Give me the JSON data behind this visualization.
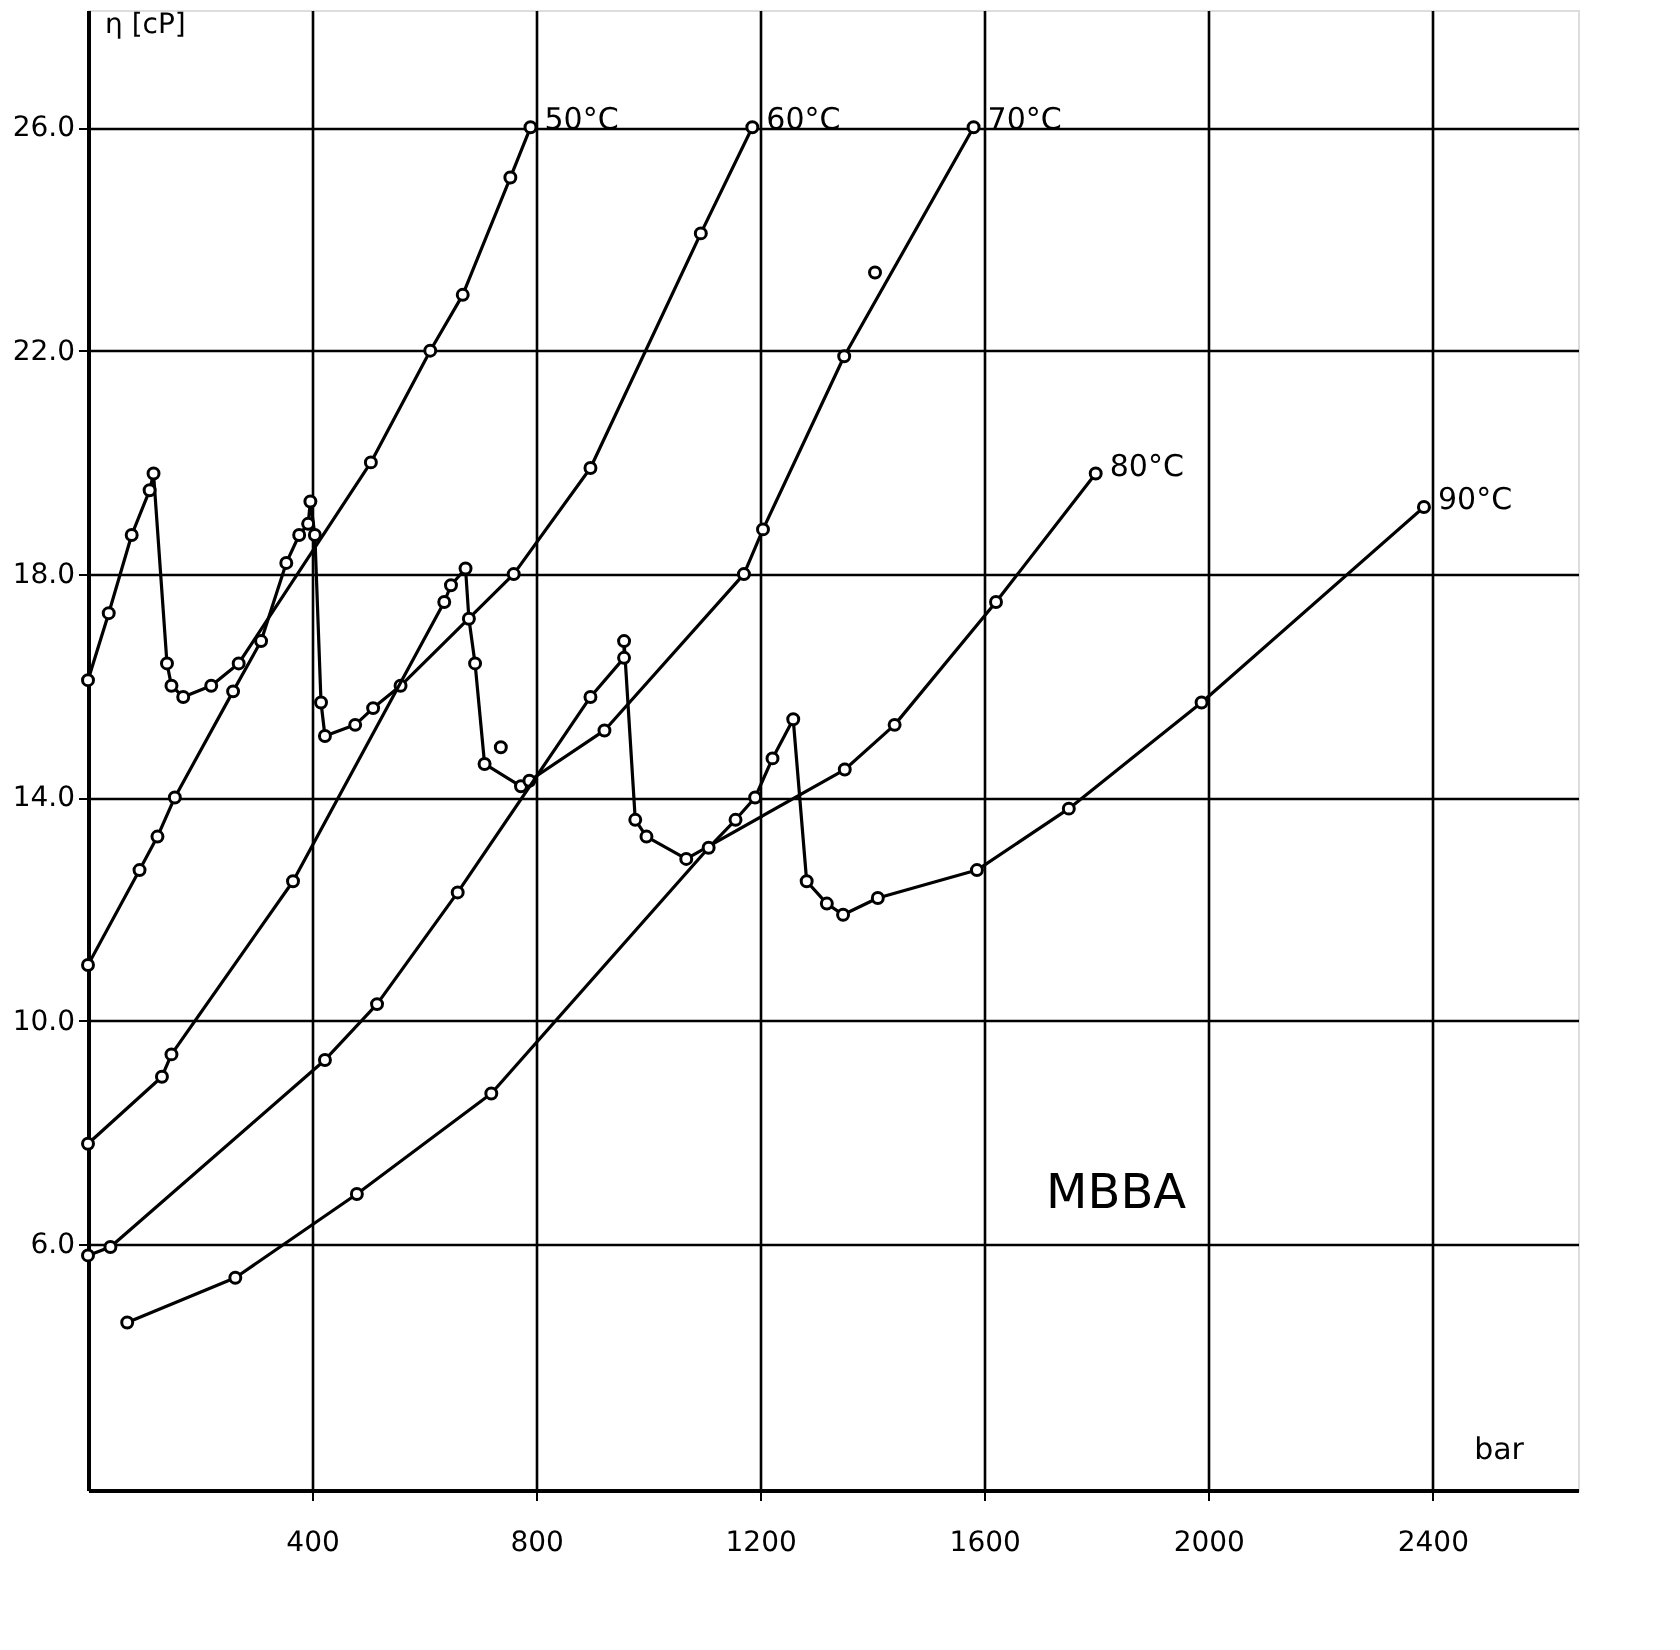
{
  "chart_data": {
    "type": "line",
    "xlabel": "bar",
    "ylabel": "η [cP]",
    "xlim": [
      0,
      2660
    ],
    "ylim": [
      1.6,
      28.1
    ],
    "xticks": [
      400,
      800,
      1200,
      1600,
      2000,
      2400
    ],
    "yticks": [
      {
        "value": 6,
        "label": "6.0"
      },
      {
        "value": 10,
        "label": "10.0"
      },
      {
        "value": 14,
        "label": "14.0"
      },
      {
        "value": 18,
        "label": "18.0"
      },
      {
        "value": 22,
        "label": "22.0"
      },
      {
        "value": 26,
        "label": "26.0"
      }
    ],
    "grid": true,
    "marker": "circle",
    "line_style": "solid",
    "annotations": [
      "MBBA"
    ],
    "series": [
      {
        "name": "50°C",
        "color": "#000000",
        "x": [
          0,
          37,
          78,
          110,
          117,
          141,
          149,
          170,
          220,
          269,
          505,
          611,
          669,
          754,
          790
        ],
        "values": [
          16.1,
          17.3,
          18.7,
          19.5,
          19.8,
          16.4,
          16.0,
          15.8,
          16.0,
          16.4,
          20.0,
          22.0,
          23.0,
          25.1,
          26.0
        ]
      },
      {
        "name": "60°C",
        "color": "#000000",
        "x": [
          0,
          92,
          124,
          155,
          259,
          309,
          354,
          377,
          393,
          397,
          405,
          416,
          423,
          477,
          509,
          558,
          760,
          897,
          1094,
          1186
        ],
        "values": [
          11.0,
          12.7,
          13.3,
          14.0,
          15.9,
          16.8,
          18.2,
          18.7,
          18.9,
          19.3,
          18.7,
          15.7,
          15.1,
          15.3,
          15.6,
          16.0,
          18.0,
          19.9,
          24.1,
          26.0
        ]
      },
      {
        "name": "70°C",
        "color": "#000000",
        "x": [
          0,
          132,
          149,
          366,
          636,
          648,
          674,
          680,
          691,
          708,
          773,
          788,
          922,
          1171,
          1205,
          1350,
          1581
        ],
        "values": [
          7.8,
          9.0,
          9.4,
          12.5,
          17.5,
          17.8,
          18.1,
          17.2,
          16.4,
          14.6,
          14.2,
          14.3,
          15.2,
          18.0,
          18.8,
          21.9,
          26.0
        ]
      },
      {
        "name": "80°C",
        "color": "#000000",
        "x": [
          0,
          40,
          423,
          516,
          660,
          897,
          957,
          957,
          977,
          997,
          1068,
          1351,
          1440,
          1621,
          1799
        ],
        "values": [
          5.8,
          5.95,
          9.3,
          10.3,
          12.3,
          15.8,
          16.5,
          16.8,
          13.6,
          13.3,
          12.9,
          14.5,
          15.3,
          17.5,
          19.8
        ]
      },
      {
        "name": "90°C",
        "color": "#000000",
        "x": [
          70,
          263,
          480,
          720,
          1108,
          1156,
          1191,
          1222,
          1259,
          1283,
          1319,
          1348,
          1410,
          1587,
          1751,
          1988,
          2385
        ],
        "values": [
          4.6,
          5.4,
          6.9,
          8.7,
          13.1,
          13.6,
          14.0,
          14.7,
          15.4,
          12.5,
          12.1,
          11.9,
          12.2,
          12.7,
          13.8,
          15.7,
          19.2
        ]
      },
      {
        "type": "scatter",
        "color": "#000000",
        "x": [
          737,
          1405
        ],
        "values": [
          14.9,
          23.4
        ]
      }
    ]
  }
}
